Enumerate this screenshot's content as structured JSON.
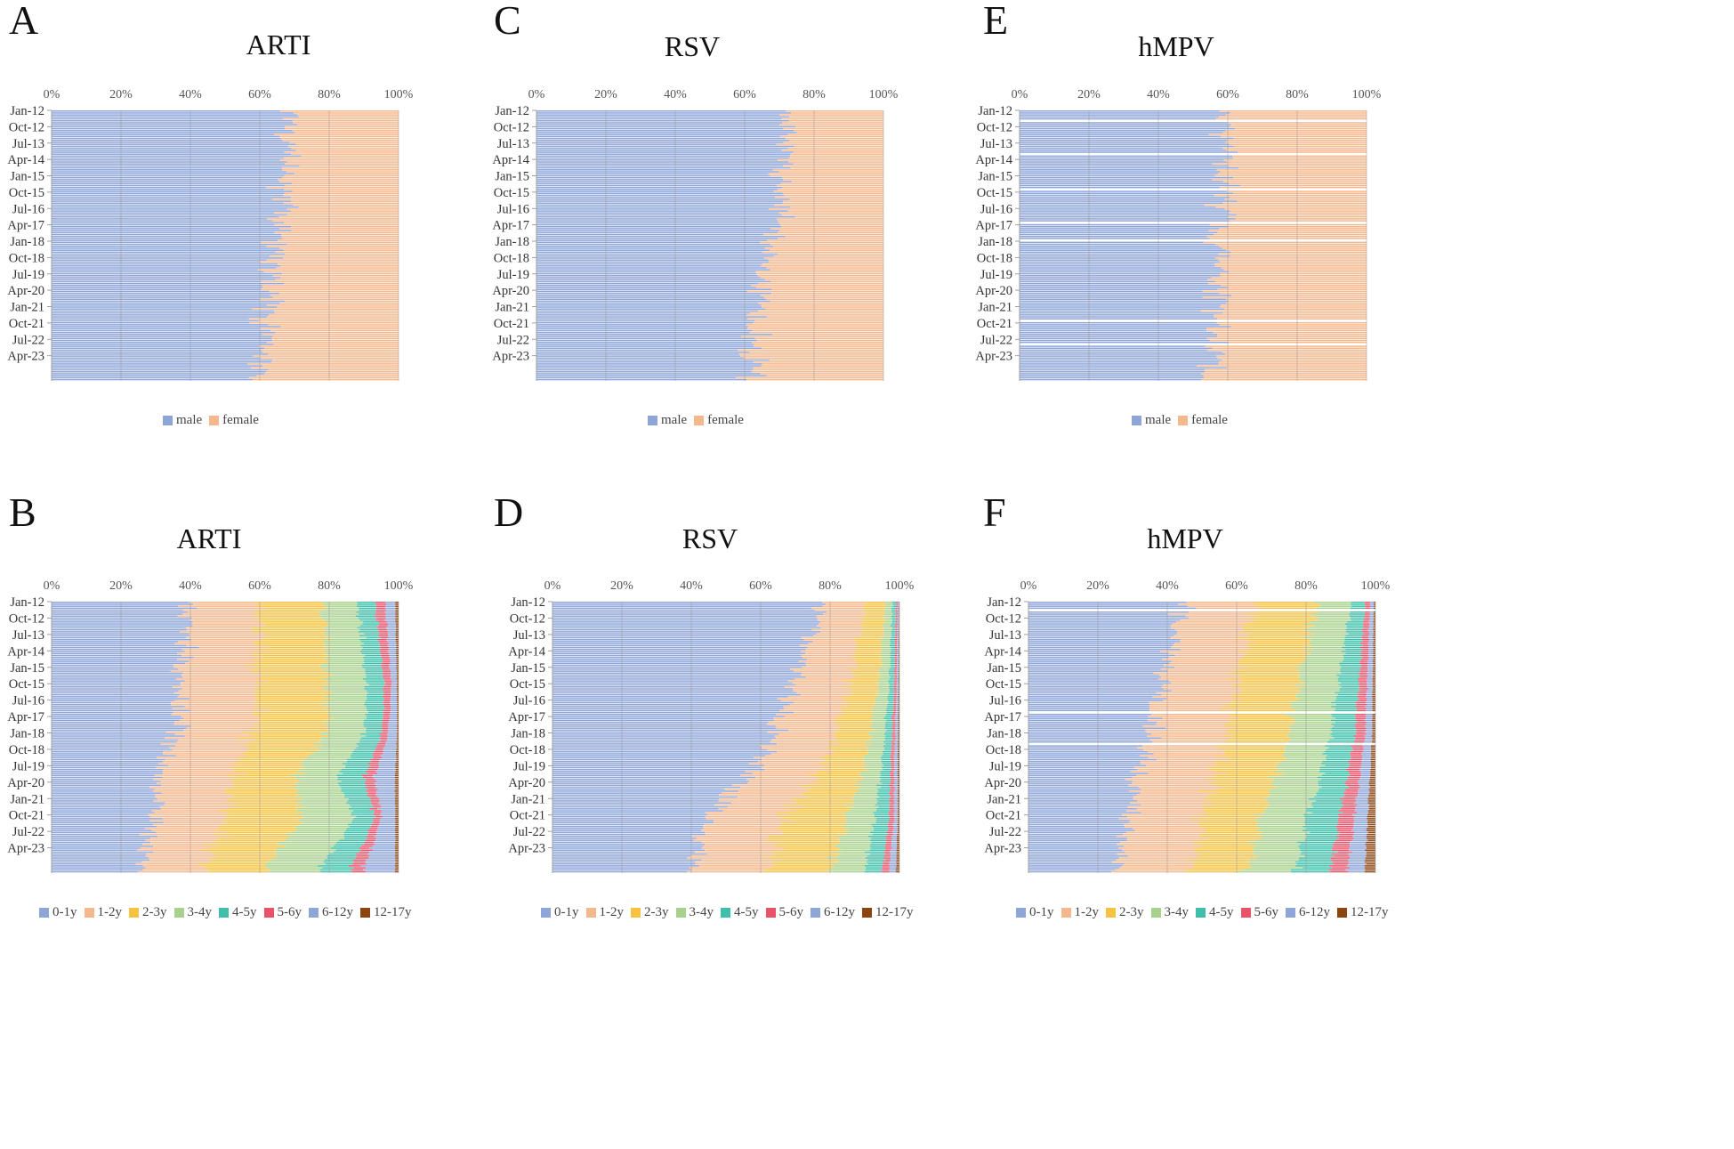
{
  "chart_data": [
    {
      "panel": "A",
      "title": "ARTI",
      "type": "bar",
      "orientation": "horizontal",
      "stacked": "100%",
      "x_ticks": [
        "0%",
        "20%",
        "40%",
        "60%",
        "80%",
        "100%"
      ],
      "y_labels": [
        "Jan-12",
        "Oct-12",
        "Jul-13",
        "Apr-14",
        "Jan-15",
        "Oct-15",
        "Jul-16",
        "Apr-17",
        "Jan-18",
        "Oct-18",
        "Jul-19",
        "Apr-20",
        "Jan-21",
        "Oct-21",
        "Jul-22",
        "Apr-23"
      ],
      "series": [
        {
          "name": "male",
          "color": "#8ea5d8"
        },
        {
          "name": "female",
          "color": "#f5b78c"
        }
      ],
      "anchors": [
        {
          "t": 0,
          "v": [
            69,
            31
          ]
        },
        {
          "t": 0.3,
          "v": [
            67,
            33
          ]
        },
        {
          "t": 0.6,
          "v": [
            64,
            36
          ]
        },
        {
          "t": 0.8,
          "v": [
            62,
            38
          ]
        },
        {
          "t": 1,
          "v": [
            59,
            41
          ]
        }
      ],
      "legend": [
        "male",
        "female"
      ]
    },
    {
      "panel": "B",
      "title": "ARTI",
      "type": "bar",
      "orientation": "horizontal",
      "stacked": "100%",
      "x_ticks": [
        "0%",
        "20%",
        "40%",
        "60%",
        "80%",
        "100%"
      ],
      "y_labels": [
        "Jan-12",
        "Oct-12",
        "Jul-13",
        "Apr-14",
        "Jan-15",
        "Oct-15",
        "Jul-16",
        "Apr-17",
        "Jan-18",
        "Oct-18",
        "Jul-19",
        "Apr-20",
        "Jan-21",
        "Oct-21",
        "Jul-22",
        "Apr-23"
      ],
      "series": [
        {
          "name": "0-1y",
          "color": "#8ea5d8"
        },
        {
          "name": "1-2y",
          "color": "#f5b78c"
        },
        {
          "name": "2-3y",
          "color": "#f5c242"
        },
        {
          "name": "3-4y",
          "color": "#a9d18e"
        },
        {
          "name": "4-5y",
          "color": "#3fbfaa"
        },
        {
          "name": "5-6y",
          "color": "#e8536a"
        },
        {
          "name": "6-12y",
          "color": "#8ea5d8"
        },
        {
          "name": "12-17y",
          "color": "#8b4513"
        }
      ],
      "anchors": [
        {
          "t": 0,
          "v": [
            40,
            20,
            18,
            10,
            5,
            3,
            3,
            1
          ]
        },
        {
          "t": 0.3,
          "v": [
            38,
            22,
            20,
            11,
            5,
            2,
            1.5,
            0.5
          ]
        },
        {
          "t": 0.5,
          "v": [
            36,
            22,
            21,
            11,
            5,
            2,
            2.5,
            0.5
          ]
        },
        {
          "t": 0.65,
          "v": [
            30,
            22,
            18,
            12,
            8,
            3,
            6,
            1
          ]
        },
        {
          "t": 0.8,
          "v": [
            30,
            20,
            22,
            15,
            6,
            2,
            4,
            1
          ]
        },
        {
          "t": 1,
          "v": [
            25,
            18,
            18,
            16,
            9,
            4,
            9,
            1
          ]
        }
      ],
      "legend": [
        "0-1y",
        "1-2y",
        "2-3y",
        "3-4y",
        "4-5y",
        "5-6y",
        "6-12y",
        "12-17y"
      ]
    },
    {
      "panel": "C",
      "title": "RSV",
      "type": "bar",
      "orientation": "horizontal",
      "stacked": "100%",
      "x_ticks": [
        "0%",
        "20%",
        "40%",
        "60%",
        "80%",
        "100%"
      ],
      "y_labels": [
        "Jan-12",
        "Oct-12",
        "Jul-13",
        "Apr-14",
        "Jan-15",
        "Oct-15",
        "Jul-16",
        "Apr-17",
        "Jan-18",
        "Oct-18",
        "Jul-19",
        "Apr-20",
        "Jan-21",
        "Oct-21",
        "Jul-22",
        "Apr-23"
      ],
      "series": [
        {
          "name": "male",
          "color": "#8ea5d8"
        },
        {
          "name": "female",
          "color": "#f5b78c"
        }
      ],
      "anchors": [
        {
          "t": 0,
          "v": [
            72,
            28
          ]
        },
        {
          "t": 0.4,
          "v": [
            70,
            30
          ]
        },
        {
          "t": 0.7,
          "v": [
            64,
            36
          ]
        },
        {
          "t": 1,
          "v": [
            62,
            38
          ]
        }
      ],
      "legend": [
        "male",
        "female"
      ]
    },
    {
      "panel": "D",
      "title": "RSV",
      "type": "bar",
      "orientation": "horizontal",
      "stacked": "100%",
      "x_ticks": [
        "0%",
        "20%",
        "40%",
        "60%",
        "80%",
        "100%"
      ],
      "y_labels": [
        "Jan-12",
        "Oct-12",
        "Jul-13",
        "Apr-14",
        "Jan-15",
        "Oct-15",
        "Jul-16",
        "Apr-17",
        "Jan-18",
        "Oct-18",
        "Jul-19",
        "Apr-20",
        "Jan-21",
        "Oct-21",
        "Jul-22",
        "Apr-23"
      ],
      "series": [
        {
          "name": "0-1y",
          "color": "#8ea5d8"
        },
        {
          "name": "1-2y",
          "color": "#f5b78c"
        },
        {
          "name": "2-3y",
          "color": "#f5c242"
        },
        {
          "name": "3-4y",
          "color": "#a9d18e"
        },
        {
          "name": "4-5y",
          "color": "#3fbfaa"
        },
        {
          "name": "5-6y",
          "color": "#e8536a"
        },
        {
          "name": "6-12y",
          "color": "#8ea5d8"
        },
        {
          "name": "12-17y",
          "color": "#8b4513"
        }
      ],
      "anchors": [
        {
          "t": 0,
          "v": [
            78,
            12,
            6,
            2,
            1,
            0.5,
            0.3,
            0.2
          ]
        },
        {
          "t": 0.3,
          "v": [
            70,
            16,
            8,
            3,
            1.5,
            0.7,
            0.5,
            0.3
          ]
        },
        {
          "t": 0.6,
          "v": [
            60,
            18,
            12,
            5,
            2.5,
            1,
            1,
            0.5
          ]
        },
        {
          "t": 0.8,
          "v": [
            45,
            22,
            18,
            8,
            4,
            1.5,
            1,
            0.5
          ]
        },
        {
          "t": 1,
          "v": [
            40,
            22,
            18,
            10,
            5,
            2,
            2,
            1
          ]
        }
      ],
      "legend": [
        "0-1y",
        "1-2y",
        "2-3y",
        "3-4y",
        "4-5y",
        "5-6y",
        "6-12y",
        "12-17y"
      ]
    },
    {
      "panel": "E",
      "title": "hMPV",
      "type": "bar",
      "orientation": "horizontal",
      "stacked": "100%",
      "x_ticks": [
        "0%",
        "20%",
        "40%",
        "60%",
        "80%",
        "100%"
      ],
      "y_labels": [
        "Jan-12",
        "Oct-12",
        "Jul-13",
        "Apr-14",
        "Jan-15",
        "Oct-15",
        "Jul-16",
        "Apr-17",
        "Jan-18",
        "Oct-18",
        "Jul-19",
        "Apr-20",
        "Jan-21",
        "Oct-21",
        "Jul-22",
        "Apr-23"
      ],
      "series": [
        {
          "name": "male",
          "color": "#8ea5d8"
        },
        {
          "name": "female",
          "color": "#f5b78c"
        }
      ],
      "anchors": [
        {
          "t": 0,
          "v": [
            60,
            40
          ]
        },
        {
          "t": 0.5,
          "v": [
            58,
            42
          ]
        },
        {
          "t": 1,
          "v": [
            55,
            45
          ]
        }
      ],
      "legend": [
        "male",
        "female"
      ]
    },
    {
      "panel": "F",
      "title": "hMPV",
      "type": "bar",
      "orientation": "horizontal",
      "stacked": "100%",
      "x_ticks": [
        "0%",
        "20%",
        "40%",
        "60%",
        "80%",
        "100%"
      ],
      "y_labels": [
        "Jan-12",
        "Oct-12",
        "Jul-13",
        "Apr-14",
        "Jan-15",
        "Oct-15",
        "Jul-16",
        "Apr-17",
        "Jan-18",
        "Oct-18",
        "Jul-19",
        "Apr-20",
        "Jan-21",
        "Oct-21",
        "Jul-22",
        "Apr-23"
      ],
      "series": [
        {
          "name": "0-1y",
          "color": "#8ea5d8"
        },
        {
          "name": "1-2y",
          "color": "#f5b78c"
        },
        {
          "name": "2-3y",
          "color": "#f5c242"
        },
        {
          "name": "3-4y",
          "color": "#a9d18e"
        },
        {
          "name": "4-5y",
          "color": "#3fbfaa"
        },
        {
          "name": "5-6y",
          "color": "#e8536a"
        },
        {
          "name": "6-12y",
          "color": "#8ea5d8"
        },
        {
          "name": "12-17y",
          "color": "#8b4513"
        }
      ],
      "anchors": [
        {
          "t": 0,
          "v": [
            45,
            20,
            18,
            10,
            4,
            1.5,
            1,
            0.5
          ]
        },
        {
          "t": 0.5,
          "v": [
            35,
            22,
            18,
            12,
            7,
            3,
            2,
            1
          ]
        },
        {
          "t": 1,
          "v": [
            25,
            22,
            16,
            14,
            10,
            5,
            5,
            3
          ]
        }
      ],
      "legend": [
        "0-1y",
        "1-2y",
        "2-3y",
        "3-4y",
        "4-5y",
        "5-6y",
        "6-12y",
        "12-17y"
      ]
    }
  ]
}
